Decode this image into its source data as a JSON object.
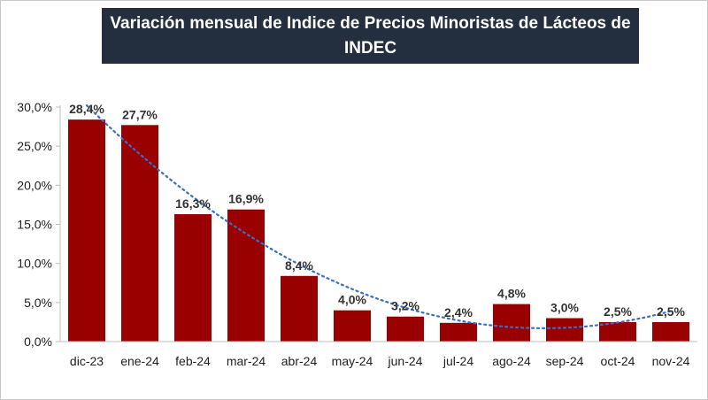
{
  "chart_data": {
    "type": "bar",
    "title": "Variación mensual de Indice de Precios Minoristas de Lácteos de INDEC",
    "categories": [
      "dic-23",
      "ene-24",
      "feb-24",
      "mar-24",
      "abr-24",
      "may-24",
      "jun-24",
      "jul-24",
      "ago-24",
      "sep-24",
      "oct-24",
      "nov-24"
    ],
    "values": [
      28.4,
      27.7,
      16.3,
      16.9,
      8.4,
      4.0,
      3.2,
      2.4,
      4.8,
      3.0,
      2.5,
      2.5
    ],
    "data_labels": [
      "28,4%",
      "27,7%",
      "16,3%",
      "16,9%",
      "8,4%",
      "4,0%",
      "3,2%",
      "2,4%",
      "4,8%",
      "3,0%",
      "2,5%",
      "2,5%"
    ],
    "ylim": [
      0,
      30
    ],
    "yticks": [
      0,
      5,
      10,
      15,
      20,
      25,
      30
    ],
    "ytick_labels": [
      "0,0%",
      "5,0%",
      "10,0%",
      "15,0%",
      "20,0%",
      "25,0%",
      "30,0%"
    ],
    "trendline": "polynomial",
    "trendline_style": "dotted",
    "grid": false,
    "legend": "none",
    "colors": {
      "bar": "#990000",
      "trendline": "#3a6fc4",
      "title_bg": "#232f3e",
      "title_text": "#ffffff"
    }
  }
}
